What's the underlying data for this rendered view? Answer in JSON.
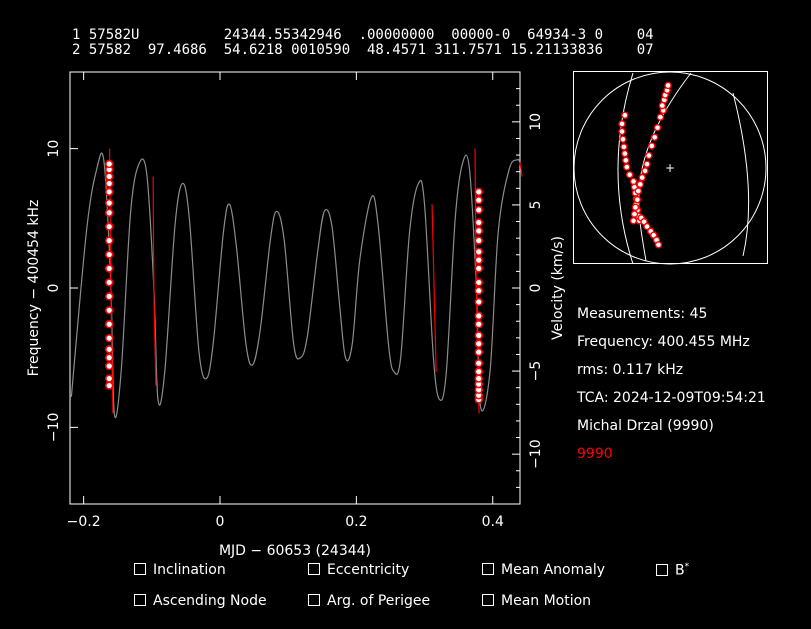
{
  "tle": {
    "line1": "1 57582U          24344.55342946  .00000000  00000-0  64934-3 0    04",
    "line2": "2 57582  97.4686  54.6218 0010590  48.4571 311.7571 15.21133836    07"
  },
  "chart_data": {
    "type": "line",
    "xlabel": "MJD − 60653 (24344)",
    "ylabel_left": "Frequency − 400454 kHz",
    "ylabel_right": "Velocity (km/s)",
    "xlim": [
      -0.22,
      0.44
    ],
    "ylim_left": [
      -15.5,
      15.5
    ],
    "ylim_right": [
      -13.0,
      13.0
    ],
    "x_ticks": [
      -0.2,
      0,
      0.2,
      0.4
    ],
    "x_tick_labels": [
      "−0.2",
      "0",
      "0.2",
      "0.4"
    ],
    "y_left_ticks": [
      -10,
      0,
      10
    ],
    "y_left_tick_labels": [
      "−10",
      "0",
      "10"
    ],
    "y_right_ticks": [
      -10,
      -5,
      0,
      5,
      10
    ],
    "y_right_tick_labels": [
      "−10",
      "−5",
      "0",
      "5",
      "10"
    ],
    "series": [
      {
        "color": "#8c8c8c",
        "points": [
          [
            -0.218,
            -7.8
          ],
          [
            -0.196,
            4.0
          ],
          [
            -0.181,
            8.5
          ],
          [
            -0.17,
            9.0
          ],
          [
            -0.16,
            0.0
          ],
          [
            -0.155,
            -9.0
          ],
          [
            -0.145,
            -6.0
          ],
          [
            -0.131,
            5.5
          ],
          [
            -0.118,
            9.0
          ],
          [
            -0.107,
            8.0
          ],
          [
            -0.097,
            0.0
          ],
          [
            -0.091,
            -8.0
          ],
          [
            -0.081,
            -6.0
          ],
          [
            -0.066,
            4.5
          ],
          [
            -0.055,
            7.5
          ],
          [
            -0.045,
            5.0
          ],
          [
            -0.031,
            -4.5
          ],
          [
            -0.02,
            -6.5
          ],
          [
            -0.01,
            -4.0
          ],
          [
            0.005,
            4.0
          ],
          [
            0.014,
            6.0
          ],
          [
            0.024,
            3.0
          ],
          [
            0.038,
            -4.0
          ],
          [
            0.048,
            -5.5
          ],
          [
            0.059,
            -3.0
          ],
          [
            0.074,
            3.5
          ],
          [
            0.083,
            5.5
          ],
          [
            0.094,
            3.5
          ],
          [
            0.108,
            -4.0
          ],
          [
            0.118,
            -5.0
          ],
          [
            0.128,
            -3.5
          ],
          [
            0.143,
            2.5
          ],
          [
            0.153,
            5.5
          ],
          [
            0.164,
            4.5
          ],
          [
            0.175,
            -1.0
          ],
          [
            0.184,
            -5.0
          ],
          [
            0.194,
            -4.0
          ],
          [
            0.205,
            2.0
          ],
          [
            0.222,
            6.5
          ],
          [
            0.232,
            4.5
          ],
          [
            0.247,
            -4.0
          ],
          [
            0.255,
            -6.0
          ],
          [
            0.265,
            -5.0
          ],
          [
            0.278,
            4.0
          ],
          [
            0.291,
            7.5
          ],
          [
            0.3,
            6.0
          ],
          [
            0.313,
            -5.0
          ],
          [
            0.322,
            -8.0
          ],
          [
            0.332,
            -6.0
          ],
          [
            0.345,
            5.0
          ],
          [
            0.356,
            9.0
          ],
          [
            0.366,
            8.5
          ],
          [
            0.376,
            0.0
          ],
          [
            0.382,
            -8.5
          ],
          [
            0.396,
            -6.0
          ],
          [
            0.408,
            4.0
          ],
          [
            0.424,
            8.5
          ],
          [
            0.436,
            9.2
          ],
          [
            0.44,
            9.0
          ]
        ]
      },
      {
        "color": "#ff0000",
        "points": [
          [
            -0.162,
            10.0
          ],
          [
            -0.16,
            0.0
          ],
          [
            -0.157,
            -9.0
          ]
        ]
      },
      {
        "color": "#ff0000",
        "points": [
          [
            -0.098,
            8.0
          ],
          [
            -0.097,
            0.0
          ],
          [
            -0.094,
            -7.0
          ]
        ]
      },
      {
        "color": "#ff0000",
        "points": [
          [
            0.311,
            6.0
          ],
          [
            0.314,
            0.0
          ],
          [
            0.317,
            -6.0
          ]
        ]
      },
      {
        "color": "#ff0000",
        "points": [
          [
            0.374,
            10.0
          ],
          [
            0.376,
            0.0
          ],
          [
            0.38,
            -9.0
          ]
        ]
      },
      {
        "color": "#ff0000",
        "points": [
          [
            0.44,
            9.0
          ],
          [
            0.443,
            8.0
          ]
        ]
      }
    ],
    "measurements_a": {
      "x": -0.1625,
      "y": [
        -7.0,
        -6.5,
        -5.6,
        -5.0,
        -4.4,
        -3.6,
        -2.6,
        -1.6,
        -0.6,
        0.4,
        1.4,
        2.4,
        3.4,
        4.4,
        5.4,
        6.1,
        6.9,
        7.5,
        8.0,
        8.5,
        8.9
      ]
    },
    "measurements_b": {
      "x": 0.3795,
      "y": [
        -8.0,
        -7.7,
        -7.3,
        -6.9,
        -6.5,
        -6.0,
        -5.4,
        -4.6,
        -4.0,
        -3.4,
        -2.6,
        -2.0,
        -1.0,
        -0.2,
        0.4,
        1.4,
        2.0,
        2.6,
        3.4,
        4.1,
        4.7,
        5.6,
        6.3,
        6.9
      ]
    },
    "skytrack": {
      "measurements": [
        [
          -0.47,
          0.55
        ],
        [
          -0.5,
          0.46
        ],
        [
          -0.5,
          0.38
        ],
        [
          -0.49,
          0.3
        ],
        [
          -0.48,
          0.22
        ],
        [
          -0.47,
          0.15
        ],
        [
          -0.46,
          0.08
        ],
        [
          -0.45,
          0.01
        ],
        [
          -0.42,
          -0.07
        ],
        [
          -0.38,
          -0.14
        ],
        [
          -0.37,
          -0.2
        ],
        [
          -0.36,
          -0.26
        ],
        [
          -0.35,
          -0.32
        ],
        [
          -0.35,
          -0.38
        ],
        [
          -0.34,
          -0.44
        ],
        [
          -0.33,
          -0.5
        ],
        [
          -0.32,
          -0.55
        ],
        [
          -0.3,
          -0.52
        ],
        [
          -0.27,
          -0.56
        ],
        [
          -0.24,
          -0.61
        ],
        [
          -0.2,
          -0.66
        ],
        [
          -0.17,
          -0.7
        ],
        [
          -0.14,
          -0.75
        ],
        [
          -0.12,
          -0.8
        ],
        [
          -0.07,
          0.6
        ],
        [
          -0.08,
          0.65
        ],
        [
          -0.06,
          0.71
        ],
        [
          -0.05,
          0.76
        ],
        [
          -0.03,
          0.81
        ],
        [
          -0.02,
          0.86
        ],
        [
          -0.1,
          0.53
        ],
        [
          -0.13,
          0.42
        ],
        [
          -0.16,
          0.32
        ],
        [
          -0.19,
          0.23
        ],
        [
          -0.22,
          0.13
        ],
        [
          -0.24,
          0.04
        ],
        [
          -0.26,
          -0.03
        ],
        [
          -0.29,
          -0.1
        ],
        [
          -0.31,
          -0.17
        ],
        [
          -0.33,
          -0.24
        ],
        [
          -0.34,
          -0.33
        ],
        [
          -0.36,
          -0.41
        ],
        [
          -0.37,
          -0.48
        ],
        [
          -0.38,
          -0.55
        ]
      ]
    }
  },
  "info": {
    "measurements": "Measurements: 45",
    "frequency": "Frequency: 400.455 MHz",
    "rms": "rms: 0.117 kHz",
    "tca": "TCA: 2024-12-09T09:54:21",
    "observer": "Michal Drzal (9990)",
    "site_id": "9990",
    "site_color": "#ff0000"
  },
  "options": {
    "inclination": "Inclination",
    "eccentricity": "Eccentricity",
    "mean_anomaly": "Mean Anomaly",
    "bstar": "B",
    "bstar_sup": "*",
    "ascending_node": "Ascending Node",
    "arg_perigee": "Arg. of Perigee",
    "mean_motion": "Mean Motion"
  }
}
